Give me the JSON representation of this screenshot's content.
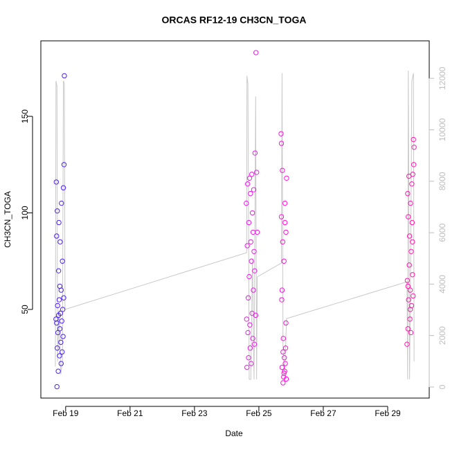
{
  "chart_data": {
    "type": "scatter",
    "title": "ORCAS RF12-19 CH3CN_TOGA",
    "x_label": "Date",
    "y_label": "CH3CN_TOGA",
    "xlim": [
      18.23,
      30.29
    ],
    "xticks": [
      {
        "value": 19,
        "label": "Feb 19"
      },
      {
        "value": 21,
        "label": "Feb 21"
      },
      {
        "value": 23,
        "label": "Feb 23"
      },
      {
        "value": 25,
        "label": "Feb 25"
      },
      {
        "value": 27,
        "label": "Feb 27"
      },
      {
        "value": 29,
        "label": "Feb 29"
      }
    ],
    "ylim": [
      4.1,
      189.1
    ],
    "yticks": [
      50,
      100,
      150
    ],
    "y2lim": [
      -431,
      13459
    ],
    "y2ticks": [
      0,
      2000,
      4000,
      6000,
      8000,
      10000,
      12000
    ],
    "series": [
      {
        "type": "line",
        "axis": "y2",
        "color": "#c8c8c8",
        "x": [
          18.68,
          18.7,
          18.73,
          18.75,
          18.8,
          18.85,
          18.9,
          18.93,
          18.96,
          18.98,
          24.62,
          24.63,
          24.66,
          24.7,
          24.75,
          24.8,
          24.85,
          24.9,
          24.93,
          24.95,
          25.7,
          25.72,
          25.75,
          25.8,
          25.86,
          29.6,
          29.62,
          29.64,
          29.68,
          29.72,
          29.75,
          29.8,
          29.82
        ],
        "values": [
          800,
          11900,
          11700,
          1000,
          3000,
          500,
          1000,
          11900,
          11800,
          3015,
          5222,
          12100,
          11800,
          300,
          300,
          5000,
          300,
          11300,
          300,
          4280,
          4820,
          12200,
          1500,
          500,
          2660,
          4090,
          300,
          12300,
          300,
          6000,
          11900,
          12200,
          1000
        ]
      },
      {
        "color": "#4b1eff",
        "x": [
          18.7,
          18.71,
          18.72,
          18.73,
          18.74,
          18.75,
          18.76,
          18.77,
          18.78,
          18.79,
          18.8,
          18.81,
          18.82,
          18.83,
          18.84,
          18.85,
          18.86,
          18.87,
          18.88,
          18.89,
          18.9,
          18.91,
          18.92,
          18.93,
          18.94,
          18.95,
          18.96,
          18.72,
          18.74,
          18.78,
          18.82,
          18.86
        ],
        "values": [
          45,
          116,
          43,
          10,
          101,
          52,
          38,
          18,
          70,
          95,
          55,
          26,
          40,
          85,
          48,
          33,
          60,
          105,
          44,
          28,
          75,
          50,
          36,
          113,
          56,
          125,
          171,
          88,
          30,
          47,
          62,
          22
        ]
      },
      {
        "color": "#e61ee6",
        "x": [
          24.61,
          24.62,
          24.63,
          24.64,
          24.65,
          24.66,
          24.67,
          24.68,
          24.69,
          24.7,
          24.71,
          24.72,
          24.73,
          24.74,
          24.75,
          24.76,
          24.77,
          24.78,
          24.79,
          24.8,
          24.81,
          24.82,
          24.83,
          24.84,
          24.85,
          24.86,
          24.87,
          24.88,
          24.9,
          24.91,
          24.93,
          24.95
        ],
        "values": [
          105,
          45,
          20,
          83,
          115,
          38,
          56,
          25,
          95,
          67,
          118,
          42,
          30,
          110,
          85,
          22,
          75,
          120,
          48,
          100,
          35,
          90,
          60,
          112,
          80,
          32,
          70,
          131,
          47,
          183,
          121,
          90
        ]
      },
      {
        "color": "#ff10dc",
        "x": [
          25.69,
          25.7,
          25.71,
          25.72,
          25.73,
          25.74,
          25.75,
          25.76,
          25.77,
          25.78,
          25.79,
          25.8,
          25.81,
          25.82,
          25.83,
          25.84,
          25.85,
          25.86,
          25.72,
          25.75,
          25.78,
          25.81,
          25.84,
          25.7
        ],
        "values": [
          141,
          98,
          55,
          20,
          122,
          85,
          12,
          35,
          15,
          75,
          25,
          18,
          105,
          22,
          30,
          90,
          14,
          118,
          60,
          28,
          17,
          95,
          43,
          136
        ]
      },
      {
        "color": "#ff1aa8",
        "x": [
          29.6,
          29.61,
          29.62,
          29.63,
          29.64,
          29.65,
          29.66,
          29.67,
          29.68,
          29.69,
          29.7,
          29.71,
          29.72,
          29.73,
          29.74,
          29.75,
          29.76,
          29.77,
          29.78,
          29.79,
          29.8,
          29.81,
          29.82,
          29.63,
          29.7,
          29.77
        ],
        "values": [
          32,
          65,
          110,
          40,
          98,
          55,
          119,
          73,
          88,
          45,
          60,
          105,
          38,
          80,
          52,
          115,
          95,
          68,
          120,
          57,
          138,
          125,
          134,
          62,
          50,
          85
        ]
      }
    ]
  }
}
